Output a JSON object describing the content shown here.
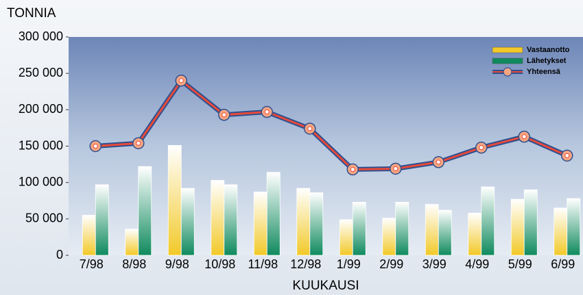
{
  "chart_data": {
    "type": "bar",
    "title": "TONNIA",
    "x_label": "KUUKAUSI",
    "categories": [
      "7/98",
      "8/98",
      "9/98",
      "10/98",
      "11/98",
      "12/98",
      "1/99",
      "2/99",
      "3/99",
      "4/99",
      "5/99",
      "6/99"
    ],
    "series": [
      {
        "name": "Vastaanotto",
        "color": "#f2c928",
        "values": [
          55000,
          36000,
          151000,
          103000,
          87000,
          92000,
          49000,
          51000,
          70000,
          58000,
          77000,
          65000
        ]
      },
      {
        "name": "Lähetykset",
        "color": "#0f8a5e",
        "values": [
          97000,
          122000,
          92000,
          97000,
          114000,
          86000,
          73000,
          73000,
          62000,
          94000,
          90000,
          78000
        ]
      },
      {
        "name": "Yhteensä",
        "type": "line",
        "color": "#e84a3a",
        "values": [
          150000,
          154000,
          240000,
          193000,
          197000,
          174000,
          118000,
          119000,
          128000,
          148000,
          163000,
          137000
        ]
      }
    ],
    "ylim": [
      0,
      300000
    ],
    "yticks": [
      0,
      {
        "value": 50000,
        "label": "50 000"
      },
      {
        "value": 100000,
        "label": "100 000"
      },
      {
        "value": 150000,
        "label": "150 000"
      },
      {
        "value": 200000,
        "label": "200 000"
      },
      {
        "value": 250000,
        "label": "250 000"
      },
      {
        "value": 300000,
        "label": "300 000"
      }
    ],
    "legend": "top-right"
  }
}
